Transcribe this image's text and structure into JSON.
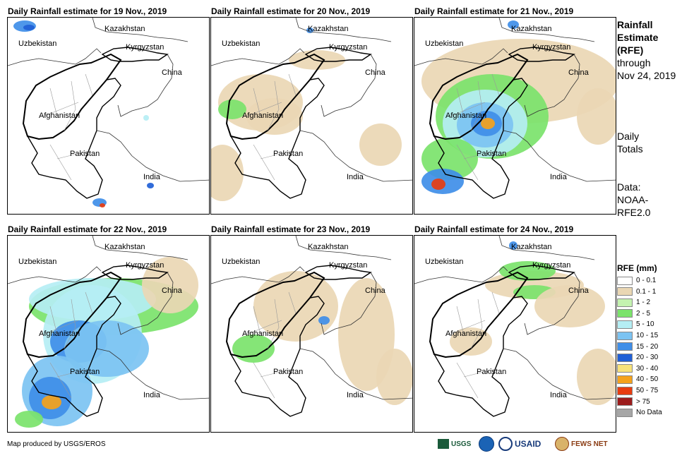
{
  "panels": [
    {
      "title": "Daily Rainfall estimate for 19 Nov., 2019"
    },
    {
      "title": "Daily Rainfall estimate for 20 Nov., 2019"
    },
    {
      "title": "Daily Rainfall estimate for 21 Nov., 2019"
    },
    {
      "title": "Daily Rainfall estimate for 22 Nov., 2019"
    },
    {
      "title": "Daily Rainfall estimate for 23 Nov., 2019"
    },
    {
      "title": "Daily Rainfall estimate for 24 Nov., 2019"
    }
  ],
  "map_labels": {
    "kazakhstan": "Kazakhstan",
    "uzbekistan": "Uzbekistan",
    "kyrgyzstan": "Kyrgyzstan",
    "china": "China",
    "afghanistan": "Afghanistan",
    "pakistan": "Pakistan",
    "india": "India"
  },
  "side": {
    "title_line1": "Rainfall",
    "title_line2": "Estimate",
    "title_line3": "(RFE)",
    "through": "through",
    "date": "Nov 24, 2019",
    "daily1": "Daily",
    "daily2": "Totals",
    "data1": "Data:",
    "data2": "NOAA-",
    "data3": "RFE2.0"
  },
  "legend": {
    "title": "RFE (mm)",
    "items": [
      {
        "label": "0 - 0.1",
        "color": "#ffffff"
      },
      {
        "label": "0.1 - 1",
        "color": "#ead7b4"
      },
      {
        "label": "1 - 2",
        "color": "#c4f3b0"
      },
      {
        "label": "2 - 5",
        "color": "#7be36b"
      },
      {
        "label": "5 - 10",
        "color": "#b5eef4"
      },
      {
        "label": "10 - 15",
        "color": "#7cc3f2"
      },
      {
        "label": "15 - 20",
        "color": "#3f8ee8"
      },
      {
        "label": "20 - 30",
        "color": "#1f5fd6"
      },
      {
        "label": "30 - 40",
        "color": "#f7e27a"
      },
      {
        "label": "40 - 50",
        "color": "#f5a21c"
      },
      {
        "label": "50 - 75",
        "color": "#e83c10"
      },
      {
        "label": "> 75",
        "color": "#9c1c1c"
      },
      {
        "label": "No Data",
        "color": "#a6a6a6"
      }
    ]
  },
  "credit": "Map produced by USGS/EROS",
  "logos": {
    "usgs": "USGS",
    "usaid": "USAID",
    "fewsnet": "FEWS NET"
  }
}
